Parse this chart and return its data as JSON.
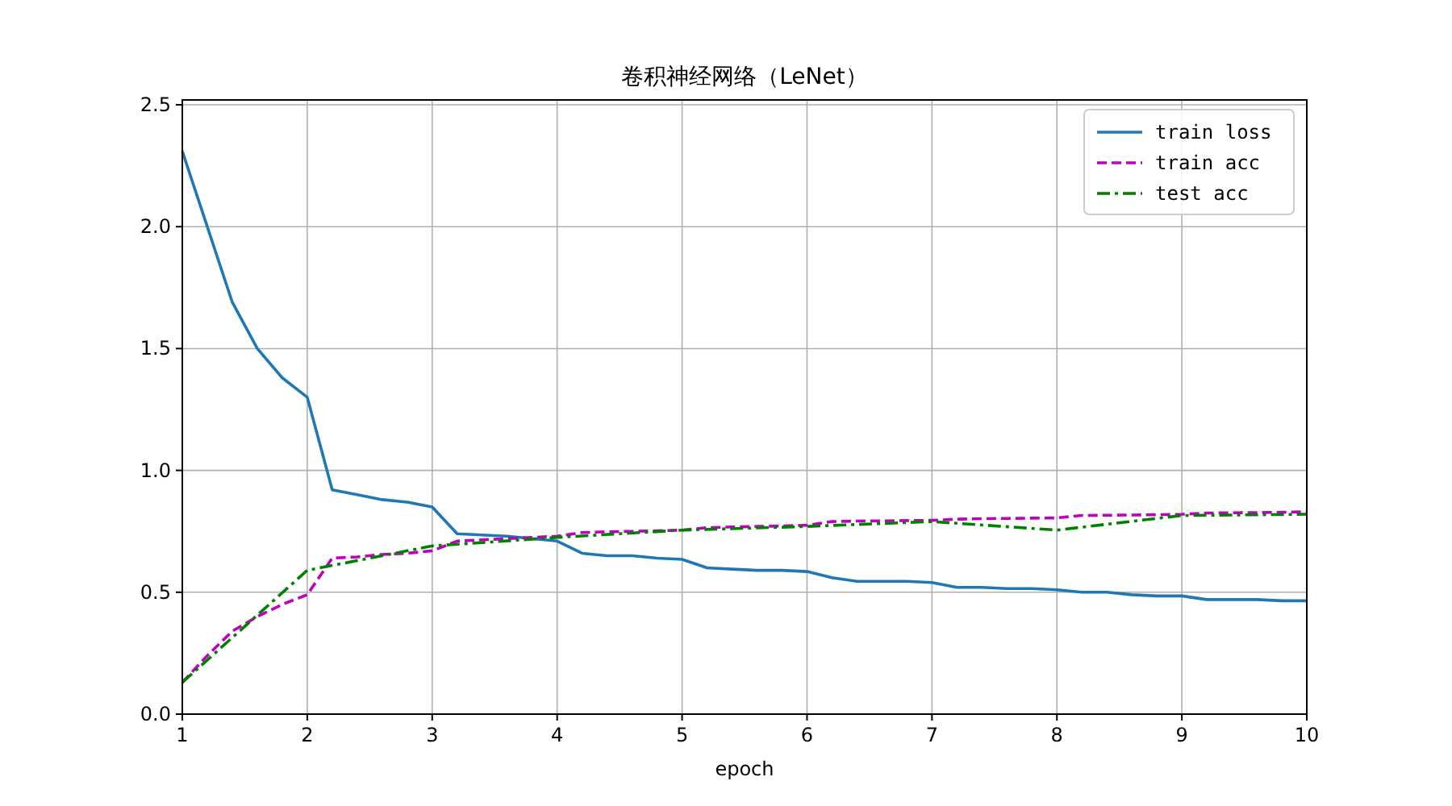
{
  "chart_data": {
    "type": "line",
    "title": "卷积神经网络（LeNet）",
    "xlabel": "epoch",
    "x": [
      1,
      1.2,
      1.4,
      1.6,
      1.8,
      2,
      2.2,
      2.4,
      2.6,
      2.8,
      3,
      3.2,
      3.4,
      3.6,
      3.8,
      4,
      4.2,
      4.4,
      4.6,
      4.8,
      5,
      5.2,
      5.4,
      5.6,
      5.8,
      6,
      6.2,
      6.4,
      6.6,
      6.8,
      7,
      7.2,
      7.4,
      7.6,
      7.8,
      8,
      8.2,
      8.4,
      8.6,
      8.8,
      9,
      9.2,
      9.4,
      9.6,
      9.8,
      10
    ],
    "series": [
      {
        "name": "train loss",
        "color": "#1f77b4",
        "line_style": "solid",
        "values": [
          2.31,
          2.0,
          1.69,
          1.5,
          1.38,
          1.3,
          0.92,
          0.9,
          0.88,
          0.87,
          0.85,
          0.74,
          0.735,
          0.73,
          0.72,
          0.71,
          0.66,
          0.65,
          0.65,
          0.64,
          0.635,
          0.6,
          0.595,
          0.59,
          0.59,
          0.585,
          0.56,
          0.545,
          0.545,
          0.545,
          0.54,
          0.52,
          0.52,
          0.515,
          0.515,
          0.51,
          0.5,
          0.5,
          0.49,
          0.485,
          0.485,
          0.47,
          0.47,
          0.47,
          0.465,
          0.465
        ]
      },
      {
        "name": "train acc",
        "color": "#bf00bf",
        "line_style": "dashed",
        "values": [
          0.13,
          0.24,
          0.34,
          0.4,
          0.45,
          0.49,
          0.64,
          0.645,
          0.655,
          0.66,
          0.67,
          0.71,
          0.715,
          0.72,
          0.725,
          0.73,
          0.745,
          0.748,
          0.75,
          0.752,
          0.755,
          0.765,
          0.768,
          0.77,
          0.772,
          0.775,
          0.79,
          0.792,
          0.793,
          0.794,
          0.795,
          0.8,
          0.802,
          0.803,
          0.804,
          0.805,
          0.815,
          0.816,
          0.817,
          0.818,
          0.82,
          0.825,
          0.826,
          0.827,
          0.828,
          0.83
        ]
      },
      {
        "name": "test acc",
        "color": "#008000",
        "line_style": "dashdot",
        "x": [
          1,
          2,
          2.2,
          3,
          4,
          5,
          6,
          7,
          8,
          9,
          10
        ],
        "values": [
          0.13,
          0.59,
          0.61,
          0.69,
          0.725,
          0.755,
          0.77,
          0.79,
          0.755,
          0.815,
          0.82
        ]
      }
    ],
    "xlim": [
      1,
      10
    ],
    "xticks": [
      1,
      2,
      3,
      4,
      5,
      6,
      7,
      8,
      9,
      10
    ],
    "ylim": [
      0,
      2.52
    ],
    "yticks": [
      {
        "value": 0,
        "label": "0.0"
      },
      0.5,
      {
        "value": 1,
        "label": "1.0"
      },
      1.5,
      {
        "value": 2,
        "label": "2.0"
      },
      2.5
    ],
    "grid": true,
    "legend": "top right"
  }
}
